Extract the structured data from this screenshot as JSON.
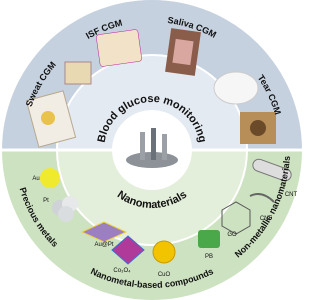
{
  "top_section": {
    "title": "Blood glucose monitoring",
    "items": [
      "Sweat CGM",
      "ISF CGM",
      "Saliva CGM",
      "Tear CGM"
    ]
  },
  "bottom_section": {
    "title": "Nanomaterials",
    "categories": [
      {
        "label": "Precious metals",
        "materials": [
          "Au",
          "Pt",
          "Au@Pt"
        ]
      },
      {
        "label": "Nanometal-based compounds",
        "materials": [
          "Co₃O₄",
          "CuO",
          "PB"
        ]
      },
      {
        "label": "Non-metallic nanomaterials",
        "materials": [
          "GO",
          "CNF",
          "CNT"
        ]
      }
    ]
  }
}
